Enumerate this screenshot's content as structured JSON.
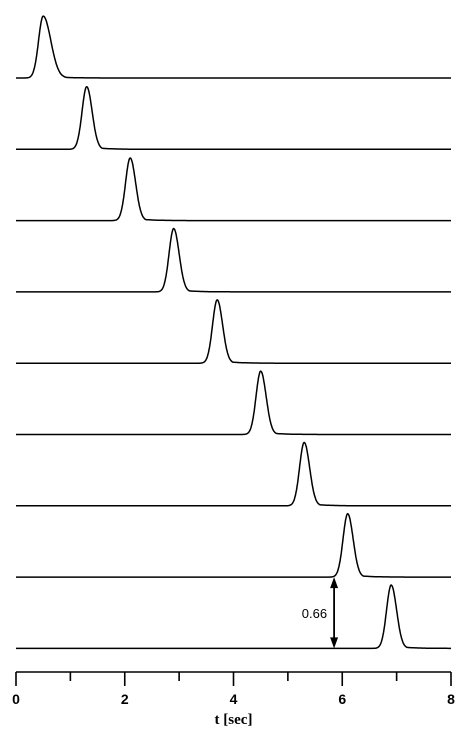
{
  "chart_data": {
    "type": "line",
    "title": "",
    "xlabel": "t [sec]",
    "ylabel": "",
    "xlim": [
      0,
      8
    ],
    "x_ticks": [
      0,
      2,
      4,
      6,
      8
    ],
    "grid": false,
    "legend": "none",
    "line_color": "#000000",
    "series": [
      {
        "peak_t": 0.5,
        "peak_height": 0.86,
        "right_width": 0.14
      },
      {
        "peak_t": 1.3,
        "peak_height": 0.87,
        "right_width": 0.1
      },
      {
        "peak_t": 2.1,
        "peak_height": 0.87,
        "right_width": 0.1
      },
      {
        "peak_t": 2.9,
        "peak_height": 0.88,
        "right_width": 0.1
      },
      {
        "peak_t": 3.7,
        "peak_height": 0.88,
        "right_width": 0.1
      },
      {
        "peak_t": 4.5,
        "peak_height": 0.88,
        "right_width": 0.1
      },
      {
        "peak_t": 5.3,
        "peak_height": 0.88,
        "right_width": 0.1
      },
      {
        "peak_t": 6.1,
        "peak_height": 0.88,
        "right_width": 0.1
      },
      {
        "peak_t": 6.9,
        "peak_height": 0.88,
        "right_width": 0.1
      }
    ],
    "annotation": {
      "text": "0.66",
      "t": 5.85
    }
  }
}
